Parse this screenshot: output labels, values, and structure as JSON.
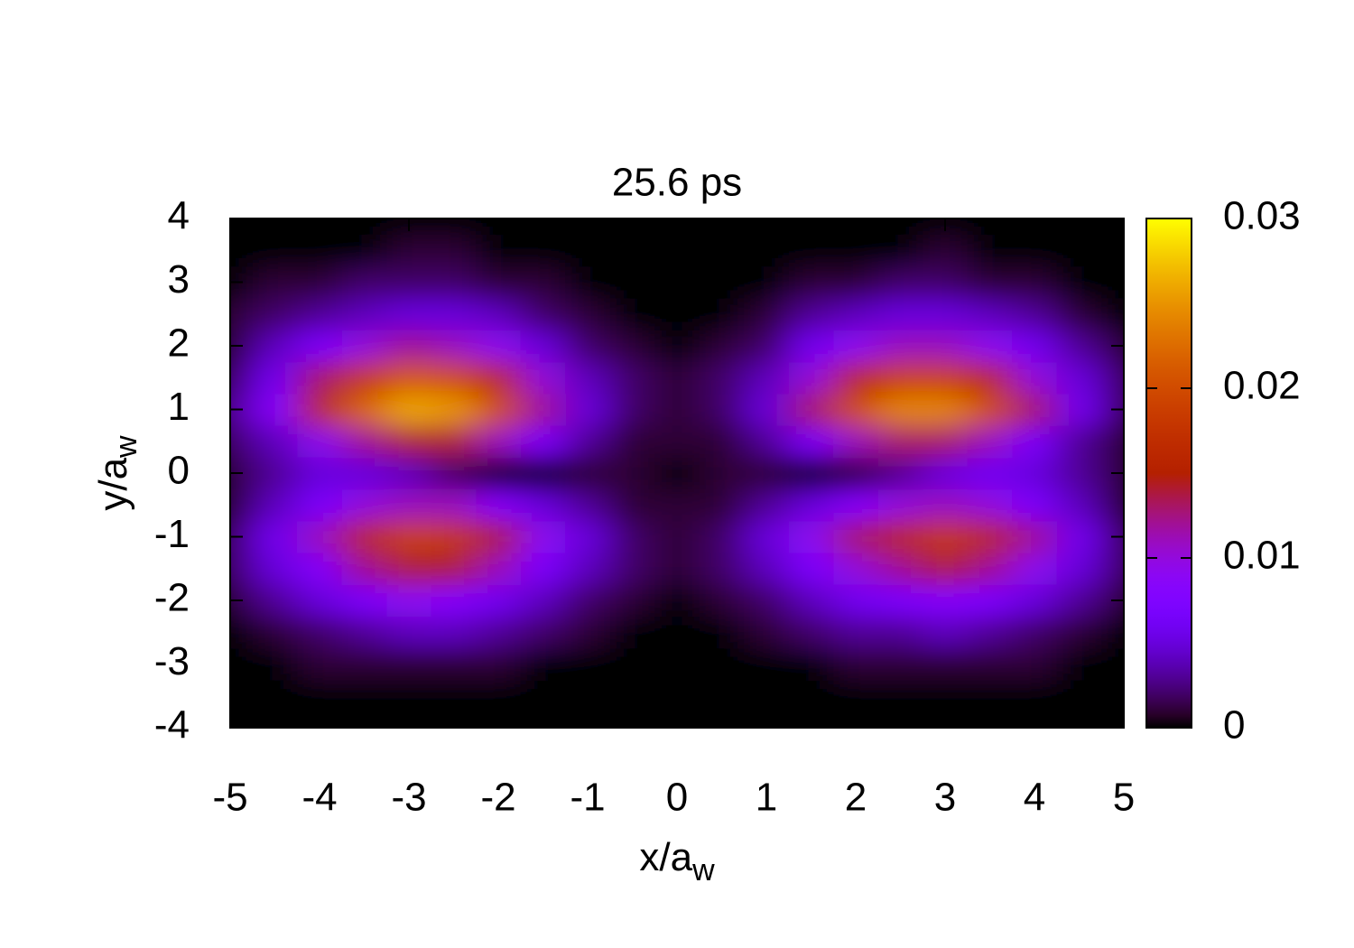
{
  "chart_data": {
    "type": "heatmap",
    "title": "25.6 ps",
    "xlabel": {
      "text": "x/a",
      "sub": "w"
    },
    "ylabel": {
      "text": "y/a",
      "sub": "w"
    },
    "colormap": "gnuplot",
    "x": [
      -5,
      -4.5,
      -4,
      -3.5,
      -3,
      -2.5,
      -2,
      -1.5,
      -1,
      -0.5,
      0,
      0.5,
      1,
      1.5,
      2,
      2.5,
      3,
      3.5,
      4,
      4.5,
      5
    ],
    "y": [
      -4,
      -3.5,
      -3,
      -2.5,
      -2,
      -1.5,
      -1,
      -0.5,
      0,
      0.5,
      1,
      1.5,
      2,
      2.5,
      3,
      3.5,
      4
    ],
    "z": [
      [
        0,
        0,
        0,
        0,
        0,
        0,
        0,
        0,
        0,
        0,
        0,
        0,
        0,
        0,
        0,
        0,
        0,
        0,
        0,
        0,
        0
      ],
      [
        0,
        0,
        0,
        0,
        0,
        0,
        0,
        0,
        0,
        0,
        0,
        0,
        0,
        0,
        0,
        0,
        0,
        0,
        0,
        0,
        0
      ],
      [
        0,
        0,
        0.001,
        0.001,
        0.001,
        0.001,
        0.001,
        0,
        0,
        0,
        0,
        0,
        0,
        0,
        0.001,
        0.001,
        0.001,
        0.001,
        0.001,
        0,
        0
      ],
      [
        0,
        0.001,
        0.002,
        0.003,
        0.004,
        0.004,
        0.003,
        0.002,
        0.001,
        0,
        0,
        0,
        0.001,
        0.002,
        0.003,
        0.003,
        0.004,
        0.003,
        0.002,
        0.001,
        0
      ],
      [
        0.001,
        0.003,
        0.005,
        0.007,
        0.009,
        0.008,
        0.006,
        0.004,
        0.002,
        0.001,
        0,
        0.001,
        0.002,
        0.004,
        0.006,
        0.007,
        0.008,
        0.007,
        0.005,
        0.003,
        0.001
      ],
      [
        0.002,
        0.005,
        0.008,
        0.012,
        0.014,
        0.014,
        0.011,
        0.007,
        0.004,
        0.002,
        0.001,
        0.002,
        0.004,
        0.007,
        0.01,
        0.012,
        0.014,
        0.012,
        0.009,
        0.005,
        0.002
      ],
      [
        0.002,
        0.006,
        0.011,
        0.016,
        0.019,
        0.018,
        0.014,
        0.009,
        0.005,
        0.002,
        0.001,
        0.002,
        0.005,
        0.009,
        0.013,
        0.016,
        0.018,
        0.016,
        0.012,
        0.006,
        0.002
      ],
      [
        0.001,
        0.004,
        0.007,
        0.01,
        0.011,
        0.011,
        0.008,
        0.005,
        0.003,
        0.001,
        0.001,
        0.001,
        0.003,
        0.005,
        0.008,
        0.01,
        0.011,
        0.01,
        0.007,
        0.004,
        0.001
      ],
      [
        0.001,
        0.003,
        0.005,
        0.005,
        0.004,
        0.002,
        0,
        0,
        0.001,
        0.001,
        0,
        0.001,
        0.001,
        0,
        0.001,
        0.003,
        0.005,
        0.006,
        0.005,
        0.003,
        0.001
      ],
      [
        0.002,
        0.004,
        0.009,
        0.012,
        0.014,
        0.014,
        0.011,
        0.007,
        0.003,
        0.001,
        0.001,
        0.001,
        0.003,
        0.007,
        0.011,
        0.013,
        0.013,
        0.011,
        0.007,
        0.003,
        0.001
      ],
      [
        0.003,
        0.008,
        0.016,
        0.022,
        0.026,
        0.025,
        0.02,
        0.012,
        0.005,
        0.002,
        0.001,
        0.002,
        0.005,
        0.013,
        0.02,
        0.024,
        0.024,
        0.02,
        0.013,
        0.006,
        0.002
      ],
      [
        0.002,
        0.006,
        0.013,
        0.018,
        0.021,
        0.02,
        0.016,
        0.01,
        0.004,
        0.002,
        0.001,
        0.002,
        0.004,
        0.01,
        0.016,
        0.019,
        0.019,
        0.016,
        0.01,
        0.005,
        0.002
      ],
      [
        0.001,
        0.004,
        0.007,
        0.01,
        0.012,
        0.011,
        0.009,
        0.005,
        0.002,
        0.001,
        0,
        0.001,
        0.002,
        0.006,
        0.009,
        0.011,
        0.011,
        0.009,
        0.006,
        0.003,
        0.001
      ],
      [
        0.001,
        0.002,
        0.003,
        0.004,
        0.005,
        0.005,
        0.004,
        0.002,
        0.001,
        0,
        0,
        0,
        0.001,
        0.003,
        0.004,
        0.005,
        0.005,
        0.004,
        0.003,
        0.001,
        0
      ],
      [
        0,
        0.001,
        0.001,
        0.002,
        0.002,
        0.002,
        0.001,
        0.001,
        0,
        0,
        0,
        0,
        0,
        0.001,
        0.001,
        0.002,
        0.002,
        0.001,
        0.001,
        0,
        0
      ],
      [
        0,
        0,
        0,
        0,
        0.001,
        0.001,
        0,
        0,
        0,
        0,
        0,
        0,
        0,
        0,
        0,
        0,
        0.001,
        0,
        0,
        0,
        0
      ],
      [
        0,
        0,
        0,
        0,
        0,
        0,
        0,
        0,
        0,
        0,
        0,
        0,
        0,
        0,
        0,
        0,
        0,
        0,
        0,
        0,
        0
      ]
    ],
    "xlim": [
      -5,
      5
    ],
    "xticks": [
      -5,
      -4,
      -3,
      -2,
      -1,
      0,
      1,
      2,
      3,
      4,
      5
    ],
    "ylim": [
      -4,
      4
    ],
    "yticks": [
      -4,
      -3,
      -2,
      -1,
      0,
      1,
      2,
      3,
      4
    ],
    "zlim": [
      0,
      0.03
    ],
    "zticks": [
      0,
      0.01,
      0.02,
      0.03
    ]
  }
}
